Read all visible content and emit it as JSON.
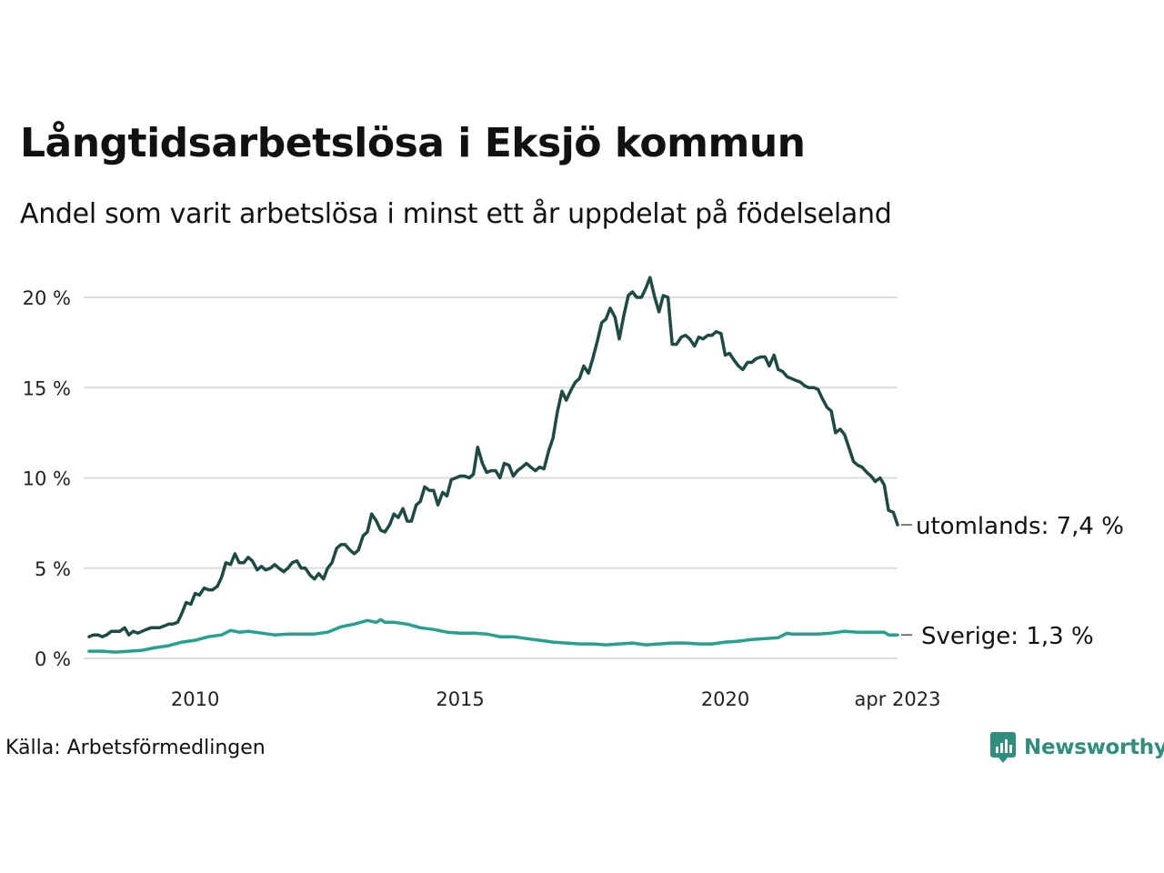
{
  "title": "Långtidsarbetslösa i Eksjö kommun",
  "subtitle": "Andel som varit arbetslösa i minst ett år uppdelat på födelseland",
  "source": "Källa: Arbetsförmedlingen",
  "brand": "Newsworthy",
  "colors": {
    "utomlands": "#1e4a44",
    "sverige": "#26a08f",
    "grid": "#dddddd",
    "brand": "#2f8f7f"
  },
  "chart_data": {
    "type": "line",
    "x_unit": "year (decimal)",
    "xlim": [
      2008.0,
      2023.25
    ],
    "ylim": [
      0,
      20.5
    ],
    "y_ticks": [
      0,
      5,
      10,
      15,
      20
    ],
    "y_tick_labels": [
      "0 %",
      "5 %",
      "10 %",
      "15 %",
      "20 %"
    ],
    "x_ticks": [
      2010,
      2015,
      2020,
      2023.25
    ],
    "x_tick_labels": [
      "2010",
      "2015",
      "2020",
      "apr 2023"
    ],
    "grid": true,
    "legend": "inline labels at line ends",
    "series": [
      {
        "key": "utomlands",
        "label": "utomlands: 7,4 %",
        "points": [
          [
            2008.0,
            1.2
          ],
          [
            2008.08,
            1.3
          ],
          [
            2008.17,
            1.3
          ],
          [
            2008.25,
            1.2
          ],
          [
            2008.33,
            1.3
          ],
          [
            2008.42,
            1.5
          ],
          [
            2008.5,
            1.5
          ],
          [
            2008.58,
            1.5
          ],
          [
            2008.67,
            1.7
          ],
          [
            2008.75,
            1.3
          ],
          [
            2008.83,
            1.5
          ],
          [
            2008.92,
            1.4
          ],
          [
            2009.0,
            1.5
          ],
          [
            2009.08,
            1.6
          ],
          [
            2009.17,
            1.7
          ],
          [
            2009.25,
            1.7
          ],
          [
            2009.33,
            1.7
          ],
          [
            2009.42,
            1.8
          ],
          [
            2009.5,
            1.9
          ],
          [
            2009.58,
            1.9
          ],
          [
            2009.67,
            2.0
          ],
          [
            2009.75,
            2.5
          ],
          [
            2009.83,
            3.1
          ],
          [
            2009.92,
            3.0
          ],
          [
            2010.0,
            3.6
          ],
          [
            2010.08,
            3.5
          ],
          [
            2010.17,
            3.9
          ],
          [
            2010.25,
            3.8
          ],
          [
            2010.33,
            3.8
          ],
          [
            2010.42,
            4.0
          ],
          [
            2010.5,
            4.5
          ],
          [
            2010.58,
            5.3
          ],
          [
            2010.67,
            5.2
          ],
          [
            2010.75,
            5.8
          ],
          [
            2010.83,
            5.3
          ],
          [
            2010.92,
            5.3
          ],
          [
            2011.0,
            5.6
          ],
          [
            2011.08,
            5.4
          ],
          [
            2011.17,
            4.9
          ],
          [
            2011.25,
            5.1
          ],
          [
            2011.33,
            4.9
          ],
          [
            2011.42,
            5.0
          ],
          [
            2011.5,
            5.2
          ],
          [
            2011.58,
            5.0
          ],
          [
            2011.67,
            4.8
          ],
          [
            2011.75,
            5.0
          ],
          [
            2011.83,
            5.3
          ],
          [
            2011.92,
            5.4
          ],
          [
            2012.0,
            5.0
          ],
          [
            2012.08,
            5.0
          ],
          [
            2012.17,
            4.6
          ],
          [
            2012.25,
            4.4
          ],
          [
            2012.33,
            4.7
          ],
          [
            2012.42,
            4.4
          ],
          [
            2012.5,
            5.0
          ],
          [
            2012.58,
            5.3
          ],
          [
            2012.67,
            6.1
          ],
          [
            2012.75,
            6.3
          ],
          [
            2012.83,
            6.3
          ],
          [
            2012.92,
            6.0
          ],
          [
            2013.0,
            5.8
          ],
          [
            2013.08,
            6.0
          ],
          [
            2013.17,
            6.8
          ],
          [
            2013.25,
            7.0
          ],
          [
            2013.33,
            8.0
          ],
          [
            2013.42,
            7.6
          ],
          [
            2013.5,
            7.1
          ],
          [
            2013.58,
            7.0
          ],
          [
            2013.67,
            7.4
          ],
          [
            2013.75,
            8.0
          ],
          [
            2013.83,
            7.8
          ],
          [
            2013.92,
            8.3
          ],
          [
            2014.0,
            7.6
          ],
          [
            2014.08,
            7.6
          ],
          [
            2014.17,
            8.5
          ],
          [
            2014.25,
            8.7
          ],
          [
            2014.33,
            9.5
          ],
          [
            2014.42,
            9.3
          ],
          [
            2014.5,
            9.3
          ],
          [
            2014.58,
            8.5
          ],
          [
            2014.67,
            9.2
          ],
          [
            2014.75,
            9.0
          ],
          [
            2014.83,
            9.9
          ],
          [
            2014.92,
            10.0
          ],
          [
            2015.0,
            10.1
          ],
          [
            2015.08,
            10.1
          ],
          [
            2015.17,
            10.0
          ],
          [
            2015.25,
            10.2
          ],
          [
            2015.33,
            11.7
          ],
          [
            2015.42,
            10.8
          ],
          [
            2015.5,
            10.3
          ],
          [
            2015.58,
            10.4
          ],
          [
            2015.67,
            10.4
          ],
          [
            2015.75,
            10.0
          ],
          [
            2015.83,
            10.8
          ],
          [
            2015.92,
            10.7
          ],
          [
            2016.0,
            10.1
          ],
          [
            2016.08,
            10.4
          ],
          [
            2016.17,
            10.6
          ],
          [
            2016.25,
            10.8
          ],
          [
            2016.33,
            10.6
          ],
          [
            2016.42,
            10.4
          ],
          [
            2016.5,
            10.6
          ],
          [
            2016.58,
            10.5
          ],
          [
            2016.67,
            11.5
          ],
          [
            2016.75,
            12.2
          ],
          [
            2016.83,
            13.6
          ],
          [
            2016.92,
            14.8
          ],
          [
            2017.0,
            14.3
          ],
          [
            2017.08,
            14.8
          ],
          [
            2017.17,
            15.3
          ],
          [
            2017.25,
            15.5
          ],
          [
            2017.33,
            16.2
          ],
          [
            2017.42,
            15.8
          ],
          [
            2017.5,
            16.6
          ],
          [
            2017.58,
            17.5
          ],
          [
            2017.67,
            18.6
          ],
          [
            2017.75,
            18.8
          ],
          [
            2017.83,
            19.4
          ],
          [
            2017.92,
            18.9
          ],
          [
            2018.0,
            17.7
          ],
          [
            2018.08,
            18.9
          ],
          [
            2018.17,
            20.1
          ],
          [
            2018.25,
            20.3
          ],
          [
            2018.33,
            20.0
          ],
          [
            2018.42,
            20.0
          ],
          [
            2018.5,
            20.5
          ],
          [
            2018.58,
            21.1
          ],
          [
            2018.67,
            20.0
          ],
          [
            2018.75,
            19.2
          ],
          [
            2018.83,
            20.1
          ],
          [
            2018.92,
            20.0
          ],
          [
            2019.0,
            17.4
          ],
          [
            2019.08,
            17.4
          ],
          [
            2019.17,
            17.8
          ],
          [
            2019.25,
            17.9
          ],
          [
            2019.33,
            17.7
          ],
          [
            2019.42,
            17.3
          ],
          [
            2019.5,
            17.8
          ],
          [
            2019.58,
            17.7
          ],
          [
            2019.67,
            17.9
          ],
          [
            2019.75,
            17.9
          ],
          [
            2019.83,
            18.1
          ],
          [
            2019.92,
            18.0
          ],
          [
            2020.0,
            16.8
          ],
          [
            2020.08,
            16.9
          ],
          [
            2020.17,
            16.5
          ],
          [
            2020.25,
            16.2
          ],
          [
            2020.33,
            16.0
          ],
          [
            2020.42,
            16.4
          ],
          [
            2020.5,
            16.4
          ],
          [
            2020.58,
            16.6
          ],
          [
            2020.67,
            16.7
          ],
          [
            2020.75,
            16.7
          ],
          [
            2020.83,
            16.2
          ],
          [
            2020.92,
            16.8
          ],
          [
            2021.0,
            16.0
          ],
          [
            2021.08,
            15.9
          ],
          [
            2021.17,
            15.6
          ],
          [
            2021.25,
            15.5
          ],
          [
            2021.33,
            15.4
          ],
          [
            2021.42,
            15.3
          ],
          [
            2021.5,
            15.1
          ],
          [
            2021.58,
            15.0
          ],
          [
            2021.67,
            15.0
          ],
          [
            2021.75,
            14.9
          ],
          [
            2021.83,
            14.4
          ],
          [
            2021.92,
            13.9
          ],
          [
            2022.0,
            13.7
          ],
          [
            2022.08,
            12.5
          ],
          [
            2022.17,
            12.7
          ],
          [
            2022.25,
            12.4
          ],
          [
            2022.33,
            11.7
          ],
          [
            2022.42,
            10.9
          ],
          [
            2022.5,
            10.7
          ],
          [
            2022.58,
            10.6
          ],
          [
            2022.67,
            10.3
          ],
          [
            2022.75,
            10.1
          ],
          [
            2022.83,
            9.8
          ],
          [
            2022.92,
            10.0
          ],
          [
            2023.0,
            9.6
          ],
          [
            2023.08,
            8.2
          ],
          [
            2023.17,
            8.1
          ],
          [
            2023.25,
            7.4
          ]
        ]
      },
      {
        "key": "sverige",
        "label": "Sverige: 1,3 %",
        "points": [
          [
            2008.0,
            0.4
          ],
          [
            2008.25,
            0.4
          ],
          [
            2008.5,
            0.35
          ],
          [
            2008.75,
            0.4
          ],
          [
            2009.0,
            0.45
          ],
          [
            2009.25,
            0.6
          ],
          [
            2009.5,
            0.7
          ],
          [
            2009.75,
            0.9
          ],
          [
            2010.0,
            1.0
          ],
          [
            2010.25,
            1.2
          ],
          [
            2010.5,
            1.3
          ],
          [
            2010.67,
            1.55
          ],
          [
            2010.83,
            1.45
          ],
          [
            2011.0,
            1.5
          ],
          [
            2011.25,
            1.4
          ],
          [
            2011.5,
            1.3
          ],
          [
            2011.75,
            1.35
          ],
          [
            2012.0,
            1.35
          ],
          [
            2012.25,
            1.35
          ],
          [
            2012.5,
            1.45
          ],
          [
            2012.75,
            1.75
          ],
          [
            2013.0,
            1.9
          ],
          [
            2013.25,
            2.1
          ],
          [
            2013.42,
            2.0
          ],
          [
            2013.5,
            2.15
          ],
          [
            2013.58,
            2.0
          ],
          [
            2013.75,
            2.0
          ],
          [
            2014.0,
            1.9
          ],
          [
            2014.25,
            1.7
          ],
          [
            2014.5,
            1.6
          ],
          [
            2014.75,
            1.45
          ],
          [
            2015.0,
            1.4
          ],
          [
            2015.25,
            1.4
          ],
          [
            2015.5,
            1.35
          ],
          [
            2015.75,
            1.2
          ],
          [
            2016.0,
            1.2
          ],
          [
            2016.25,
            1.1
          ],
          [
            2016.5,
            1.0
          ],
          [
            2016.75,
            0.9
          ],
          [
            2017.0,
            0.85
          ],
          [
            2017.25,
            0.8
          ],
          [
            2017.5,
            0.8
          ],
          [
            2017.75,
            0.75
          ],
          [
            2018.0,
            0.8
          ],
          [
            2018.25,
            0.85
          ],
          [
            2018.5,
            0.75
          ],
          [
            2018.75,
            0.8
          ],
          [
            2019.0,
            0.85
          ],
          [
            2019.25,
            0.85
          ],
          [
            2019.5,
            0.8
          ],
          [
            2019.75,
            0.8
          ],
          [
            2020.0,
            0.9
          ],
          [
            2020.25,
            0.95
          ],
          [
            2020.5,
            1.05
          ],
          [
            2020.75,
            1.1
          ],
          [
            2021.0,
            1.15
          ],
          [
            2021.17,
            1.4
          ],
          [
            2021.25,
            1.35
          ],
          [
            2021.5,
            1.35
          ],
          [
            2021.75,
            1.35
          ],
          [
            2022.0,
            1.4
          ],
          [
            2022.25,
            1.5
          ],
          [
            2022.5,
            1.45
          ],
          [
            2022.75,
            1.45
          ],
          [
            2023.0,
            1.45
          ],
          [
            2023.08,
            1.3
          ],
          [
            2023.25,
            1.3
          ]
        ]
      }
    ]
  }
}
